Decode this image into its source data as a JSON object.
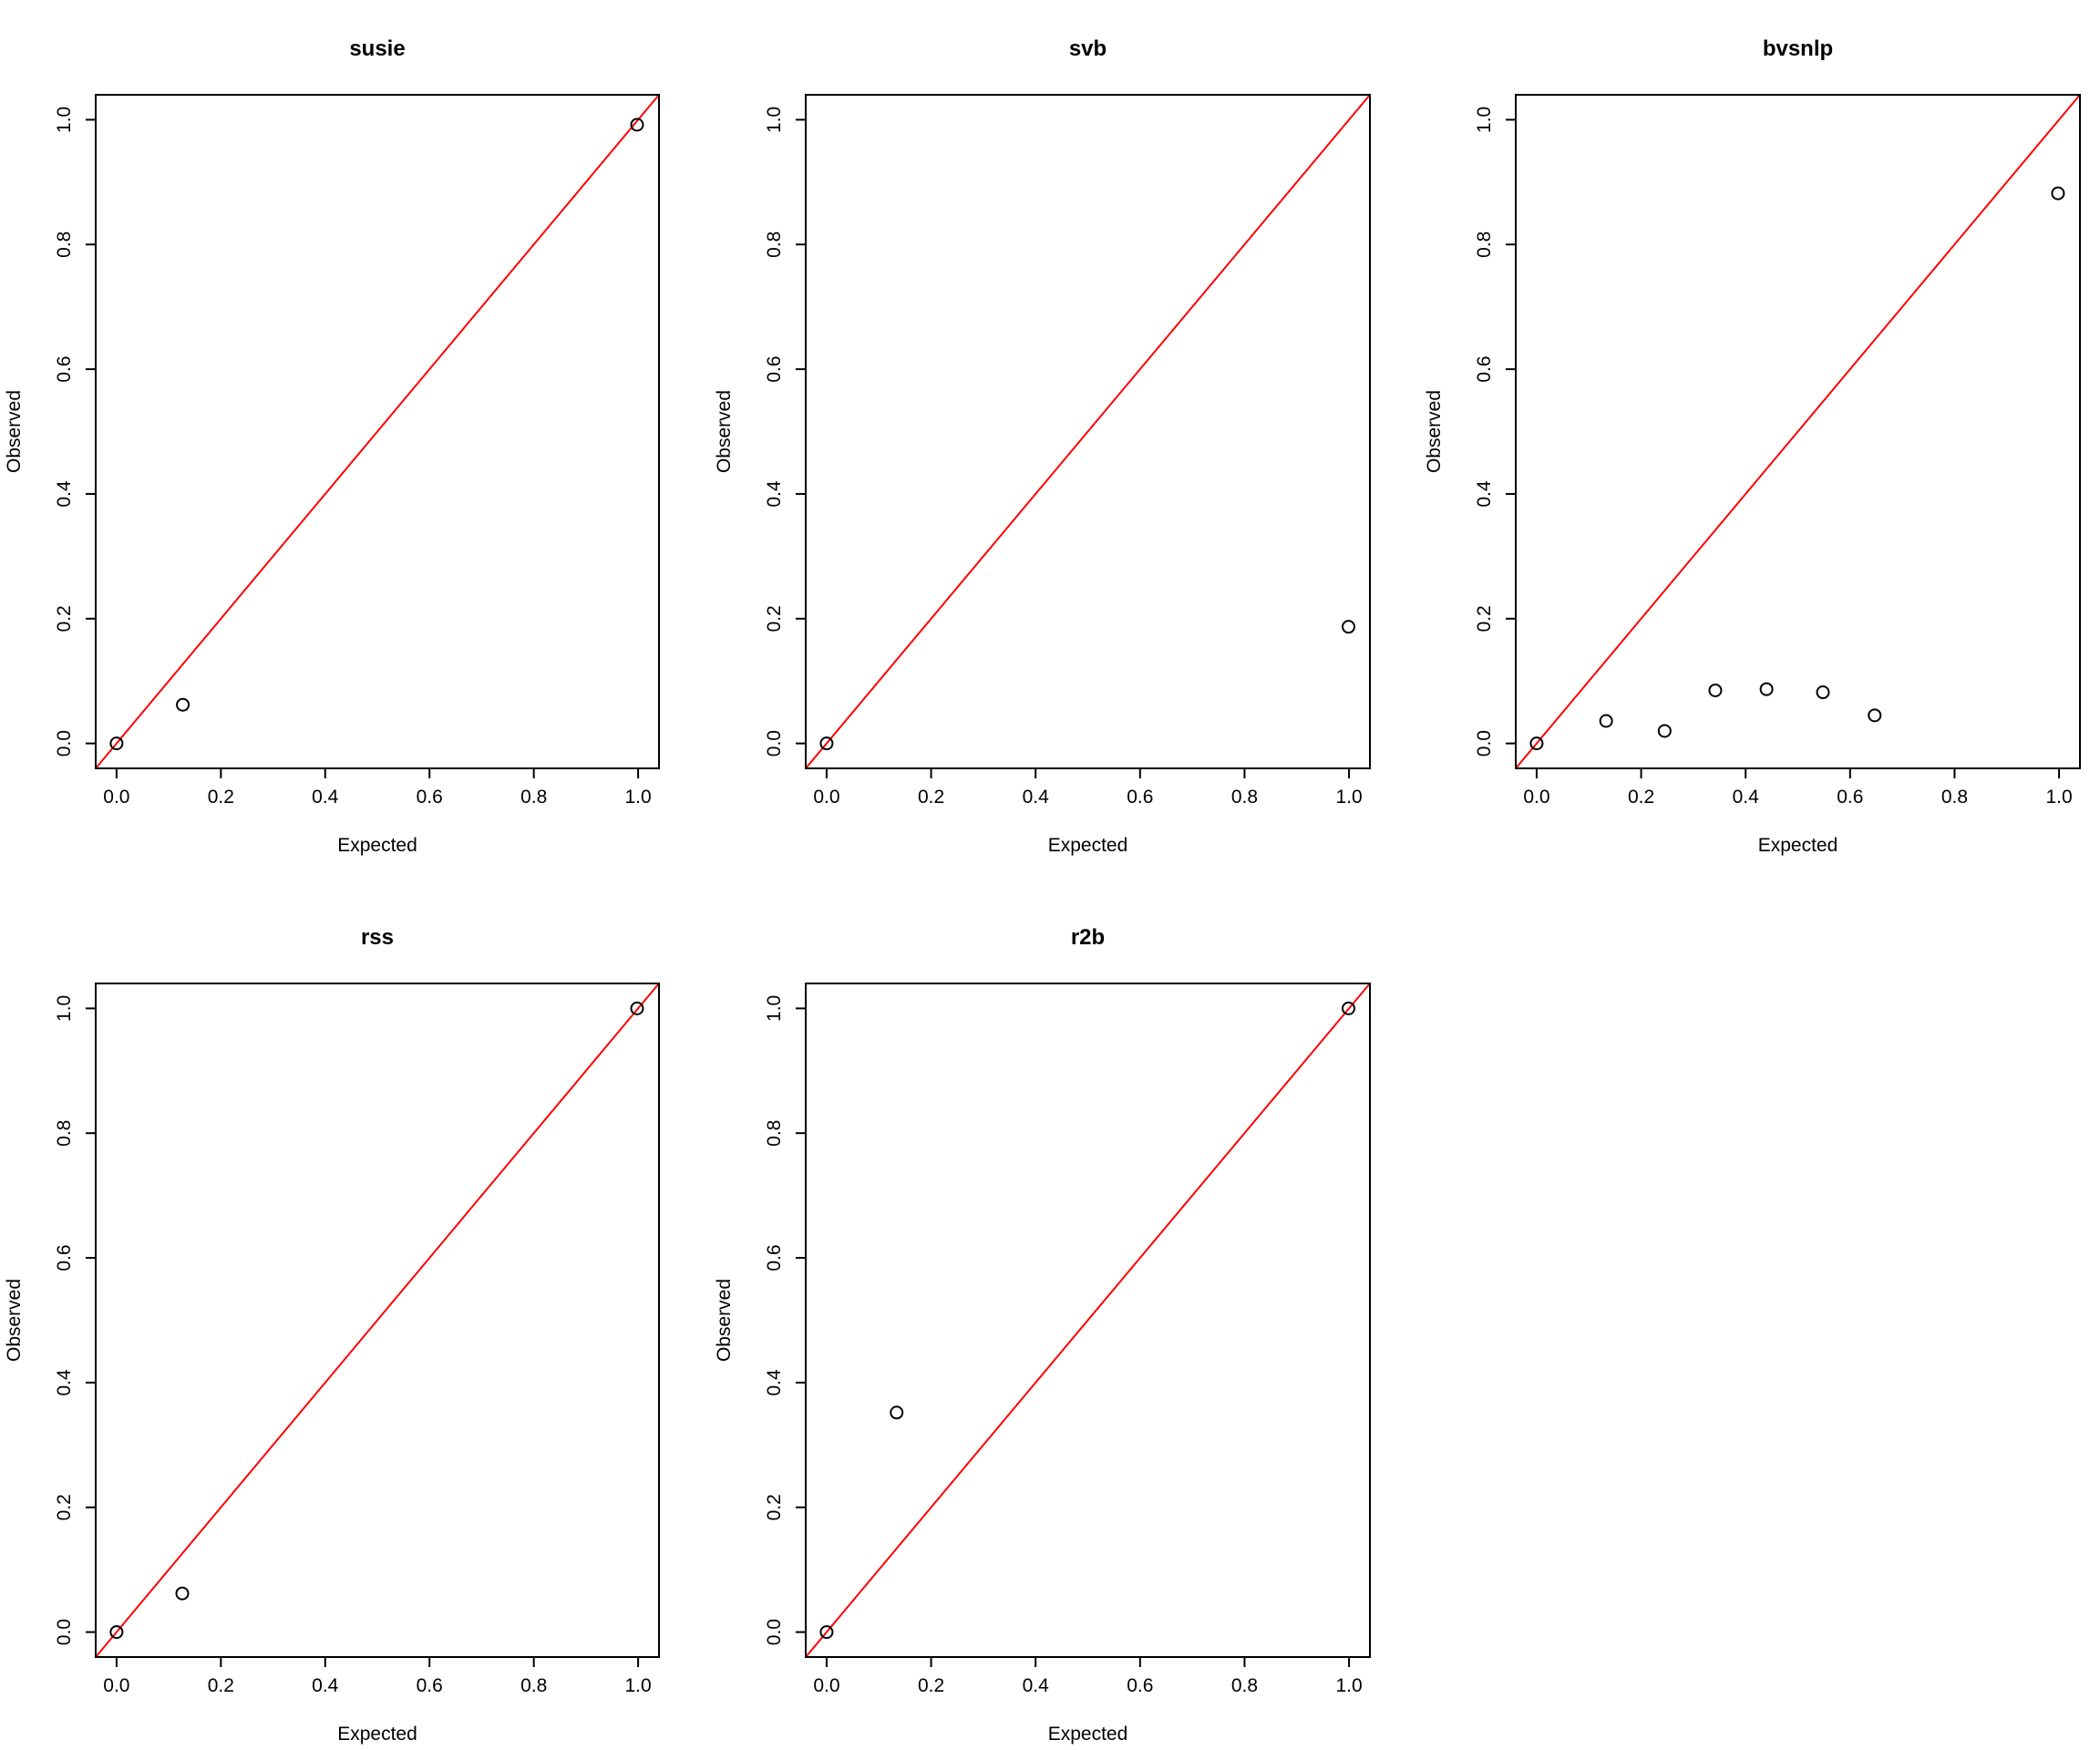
{
  "chart_data": [
    {
      "type": "scatter",
      "title": "susie",
      "xlabel": "Expected",
      "ylabel": "Observed",
      "xlim": [
        -0.04,
        1.04
      ],
      "ylim": [
        -0.04,
        1.04
      ],
      "xticks": [
        "0.0",
        "0.2",
        "0.4",
        "0.6",
        "0.8",
        "1.0"
      ],
      "yticks": [
        "0.0",
        "0.2",
        "0.4",
        "0.6",
        "0.8",
        "1.0"
      ],
      "points": [
        {
          "x": 0.0,
          "y": 0.0
        },
        {
          "x": 0.127,
          "y": 0.062
        },
        {
          "x": 0.998,
          "y": 0.992
        }
      ],
      "reference_line": {
        "intercept": 0,
        "slope": 1,
        "color": "#ff0000"
      },
      "grid": false
    },
    {
      "type": "scatter",
      "title": "svb",
      "xlabel": "Expected",
      "ylabel": "Observed",
      "xlim": [
        -0.04,
        1.04
      ],
      "ylim": [
        -0.04,
        1.04
      ],
      "xticks": [
        "0.0",
        "0.2",
        "0.4",
        "0.6",
        "0.8",
        "1.0"
      ],
      "yticks": [
        "0.0",
        "0.2",
        "0.4",
        "0.6",
        "0.8",
        "1.0"
      ],
      "points": [
        {
          "x": 0.0,
          "y": 0.0
        },
        {
          "x": 0.999,
          "y": 0.187
        }
      ],
      "reference_line": {
        "intercept": 0,
        "slope": 1,
        "color": "#ff0000"
      },
      "grid": false
    },
    {
      "type": "scatter",
      "title": "bvsnlp",
      "xlabel": "Expected",
      "ylabel": "Observed",
      "xlim": [
        -0.04,
        1.04
      ],
      "ylim": [
        -0.04,
        1.04
      ],
      "xticks": [
        "0.0",
        "0.2",
        "0.4",
        "0.6",
        "0.8",
        "1.0"
      ],
      "yticks": [
        "0.0",
        "0.2",
        "0.4",
        "0.6",
        "0.8",
        "1.0"
      ],
      "points": [
        {
          "x": 0.0,
          "y": 0.0
        },
        {
          "x": 0.133,
          "y": 0.036
        },
        {
          "x": 0.245,
          "y": 0.02
        },
        {
          "x": 0.342,
          "y": 0.085
        },
        {
          "x": 0.44,
          "y": 0.087
        },
        {
          "x": 0.548,
          "y": 0.082
        },
        {
          "x": 0.647,
          "y": 0.045
        },
        {
          "x": 0.998,
          "y": 0.882
        }
      ],
      "reference_line": {
        "intercept": 0,
        "slope": 1,
        "color": "#ff0000"
      },
      "grid": false
    },
    {
      "type": "scatter",
      "title": "rss",
      "xlabel": "Expected",
      "ylabel": "Observed",
      "xlim": [
        -0.04,
        1.04
      ],
      "ylim": [
        -0.04,
        1.04
      ],
      "xticks": [
        "0.0",
        "0.2",
        "0.4",
        "0.6",
        "0.8",
        "1.0"
      ],
      "yticks": [
        "0.0",
        "0.2",
        "0.4",
        "0.6",
        "0.8",
        "1.0"
      ],
      "points": [
        {
          "x": 0.0,
          "y": 0.0
        },
        {
          "x": 0.126,
          "y": 0.062
        },
        {
          "x": 0.998,
          "y": 1.0
        }
      ],
      "reference_line": {
        "intercept": 0,
        "slope": 1,
        "color": "#ff0000"
      },
      "grid": false
    },
    {
      "type": "scatter",
      "title": "r2b",
      "xlabel": "Expected",
      "ylabel": "Observed",
      "xlim": [
        -0.04,
        1.04
      ],
      "ylim": [
        -0.04,
        1.04
      ],
      "xticks": [
        "0.0",
        "0.2",
        "0.4",
        "0.6",
        "0.8",
        "1.0"
      ],
      "yticks": [
        "0.0",
        "0.2",
        "0.4",
        "0.6",
        "0.8",
        "1.0"
      ],
      "points": [
        {
          "x": 0.0,
          "y": 0.0
        },
        {
          "x": 0.134,
          "y": 0.352
        },
        {
          "x": 0.999,
          "y": 1.0
        }
      ],
      "reference_line": {
        "intercept": 0,
        "slope": 1,
        "color": "#ff0000"
      },
      "grid": false
    }
  ]
}
